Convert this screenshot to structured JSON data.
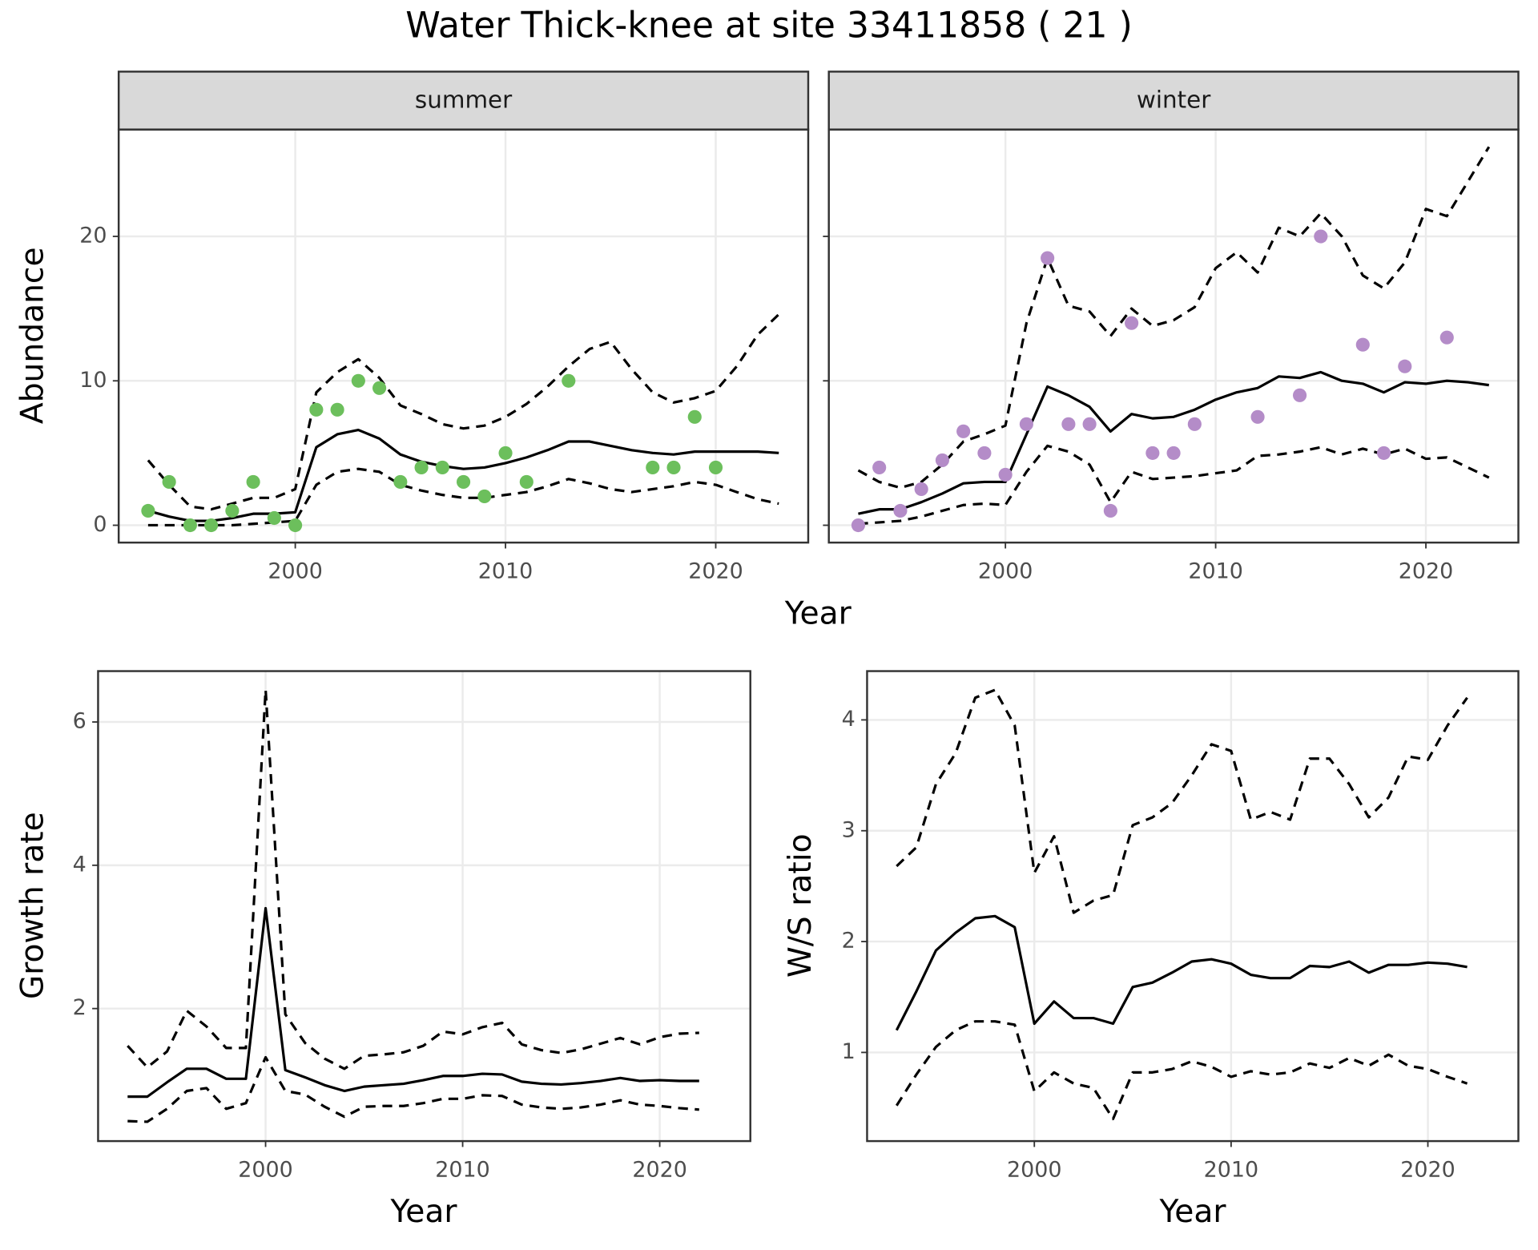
{
  "title": "Water Thick-knee at site 33411858 ( 21 )",
  "chart_data": [
    {
      "type": "line",
      "title": "summer",
      "xlabel": "Year",
      "ylabel": "Abundance",
      "xlim": [
        1991.6,
        2024.4
      ],
      "ylim": [
        -1.2,
        27.4
      ],
      "xticks": [
        2000,
        2010,
        2020
      ],
      "yticks": [
        0,
        10,
        20
      ],
      "grid": true,
      "x": [
        1993,
        1994,
        1995,
        1996,
        1997,
        1998,
        1999,
        2000,
        2001,
        2002,
        2003,
        2004,
        2005,
        2006,
        2007,
        2008,
        2009,
        2010,
        2011,
        2012,
        2013,
        2014,
        2015,
        2016,
        2017,
        2018,
        2019,
        2020,
        2021,
        2022,
        2023
      ],
      "series": [
        {
          "color": "#000000",
          "style": "solid",
          "values": [
            1.0,
            0.6,
            0.3,
            0.3,
            0.5,
            0.8,
            0.8,
            0.9,
            5.4,
            6.3,
            6.6,
            6.0,
            4.9,
            4.4,
            4.1,
            3.9,
            4.0,
            4.3,
            4.7,
            5.2,
            5.8,
            5.8,
            5.5,
            5.2,
            5.0,
            4.9,
            5.1,
            5.1,
            5.1,
            5.1,
            5.0
          ]
        },
        {
          "color": "#000000",
          "style": "dashed",
          "values": [
            4.5,
            2.8,
            1.3,
            1.1,
            1.5,
            1.9,
            1.9,
            2.5,
            9.2,
            10.6,
            11.5,
            10.2,
            8.3,
            7.7,
            7.0,
            6.7,
            6.9,
            7.5,
            8.4,
            9.6,
            11.0,
            12.2,
            12.7,
            10.8,
            9.2,
            8.5,
            8.8,
            9.3,
            11.0,
            13.2,
            14.6
          ]
        },
        {
          "color": "#000000",
          "style": "dashed",
          "values": [
            0,
            0,
            0,
            0,
            0,
            0.1,
            0.2,
            0.3,
            2.8,
            3.7,
            3.9,
            3.7,
            2.8,
            2.4,
            2.1,
            1.9,
            1.9,
            2.1,
            2.3,
            2.7,
            3.2,
            2.9,
            2.5,
            2.3,
            2.5,
            2.7,
            3.0,
            2.8,
            2.3,
            1.8,
            1.5
          ]
        }
      ],
      "points": {
        "color": "#6cbf5c",
        "x": [
          1993,
          1994,
          1995,
          1996,
          1997,
          1998,
          1999,
          2000,
          2001,
          2002,
          2003,
          2004,
          2005,
          2006,
          2007,
          2008,
          2009,
          2010,
          2011,
          2013,
          2017,
          2018,
          2019,
          2020
        ],
        "values": [
          1,
          3,
          0,
          0,
          1,
          3,
          0.5,
          0,
          8,
          8,
          10,
          9.5,
          3,
          4,
          4,
          3,
          2,
          5,
          3,
          10,
          4,
          4,
          7.5,
          4
        ]
      }
    },
    {
      "type": "line",
      "title": "winter",
      "ytick_labels": false,
      "xlim": [
        1991.6,
        2024.4
      ],
      "ylim": [
        -1.2,
        27.4
      ],
      "xticks": [
        2000,
        2010,
        2020
      ],
      "yticks": [
        0,
        10,
        20
      ],
      "grid": true,
      "x": [
        1993,
        1994,
        1995,
        1996,
        1997,
        1998,
        1999,
        2000,
        2001,
        2002,
        2003,
        2004,
        2005,
        2006,
        2007,
        2008,
        2009,
        2010,
        2011,
        2012,
        2013,
        2014,
        2015,
        2016,
        2017,
        2018,
        2019,
        2020,
        2021,
        2022,
        2023
      ],
      "series": [
        {
          "color": "#000000",
          "style": "solid",
          "values": [
            0.8,
            1.1,
            1.1,
            1.6,
            2.2,
            2.9,
            3.0,
            3.0,
            6.3,
            9.6,
            9.0,
            8.2,
            6.5,
            7.7,
            7.4,
            7.5,
            8.0,
            8.7,
            9.2,
            9.5,
            10.3,
            10.2,
            10.6,
            10.0,
            9.8,
            9.2,
            9.9,
            9.8,
            10.0,
            9.9,
            9.7
          ]
        },
        {
          "color": "#000000",
          "style": "dashed",
          "values": [
            3.8,
            3.0,
            2.6,
            3.0,
            4.2,
            5.8,
            6.3,
            6.9,
            14.0,
            18.5,
            15.2,
            14.8,
            13.1,
            15.0,
            13.8,
            14.2,
            15.1,
            17.8,
            18.9,
            17.5,
            20.6,
            20.0,
            21.6,
            20.0,
            17.3,
            16.4,
            18.2,
            21.9,
            21.4,
            23.8,
            26.2
          ]
        },
        {
          "color": "#000000",
          "style": "dashed",
          "values": [
            0.1,
            0.2,
            0.3,
            0.6,
            1.0,
            1.4,
            1.5,
            1.4,
            3.7,
            5.5,
            5.1,
            4.2,
            1.6,
            3.7,
            3.2,
            3.3,
            3.4,
            3.6,
            3.8,
            4.8,
            4.9,
            5.1,
            5.4,
            4.9,
            5.3,
            4.9,
            5.3,
            4.6,
            4.7,
            4.0,
            3.3
          ]
        }
      ],
      "points": {
        "color": "#b48cc8",
        "x": [
          1993,
          1994,
          1995,
          1996,
          1997,
          1998,
          1999,
          2000,
          2001,
          2002,
          2003,
          2004,
          2005,
          2006,
          2007,
          2008,
          2009,
          2012,
          2014,
          2015,
          2017,
          2018,
          2019,
          2021
        ],
        "values": [
          0,
          4,
          1,
          2.5,
          4.5,
          6.5,
          5,
          3.5,
          7,
          18.5,
          7,
          7,
          1,
          14,
          5,
          5,
          7,
          7.5,
          9,
          20,
          12.5,
          5,
          11,
          13
        ]
      }
    },
    {
      "type": "line",
      "xlabel": "Year",
      "ylabel": "Growth rate",
      "xlim": [
        1991.5,
        2024.6
      ],
      "ylim": [
        0.15,
        6.71
      ],
      "xticks": [
        2000,
        2010,
        2020
      ],
      "yticks": [
        2,
        4,
        6
      ],
      "grid": true,
      "x": [
        1993,
        1994,
        1995,
        1996,
        1997,
        1998,
        1999,
        2000,
        2001,
        2002,
        2003,
        2004,
        2005,
        2006,
        2007,
        2008,
        2009,
        2010,
        2011,
        2012,
        2013,
        2014,
        2015,
        2016,
        2017,
        2018,
        2019,
        2020,
        2021,
        2022
      ],
      "series": [
        {
          "color": "#000000",
          "style": "solid",
          "values": [
            0.77,
            0.77,
            0.97,
            1.16,
            1.16,
            1.02,
            1.02,
            3.4,
            1.14,
            1.04,
            0.93,
            0.85,
            0.91,
            0.93,
            0.95,
            1.0,
            1.06,
            1.06,
            1.09,
            1.08,
            0.98,
            0.95,
            0.94,
            0.96,
            0.99,
            1.03,
            0.99,
            1.0,
            0.99,
            0.99
          ]
        },
        {
          "color": "#000000",
          "style": "dashed",
          "values": [
            1.48,
            1.18,
            1.4,
            1.97,
            1.75,
            1.45,
            1.45,
            6.45,
            1.92,
            1.52,
            1.3,
            1.16,
            1.34,
            1.36,
            1.39,
            1.48,
            1.68,
            1.64,
            1.74,
            1.8,
            1.5,
            1.42,
            1.38,
            1.43,
            1.51,
            1.59,
            1.5,
            1.6,
            1.65,
            1.66
          ]
        },
        {
          "color": "#000000",
          "style": "dashed",
          "values": [
            0.43,
            0.42,
            0.6,
            0.85,
            0.89,
            0.6,
            0.68,
            1.32,
            0.85,
            0.8,
            0.63,
            0.49,
            0.63,
            0.64,
            0.64,
            0.68,
            0.74,
            0.74,
            0.79,
            0.78,
            0.66,
            0.62,
            0.6,
            0.62,
            0.66,
            0.72,
            0.66,
            0.64,
            0.61,
            0.59
          ]
        }
      ]
    },
    {
      "type": "line",
      "xlabel": "Year",
      "ylabel": "W/S ratio",
      "xlim": [
        1991.5,
        2024.6
      ],
      "ylim": [
        0.2,
        4.44
      ],
      "xticks": [
        2000,
        2010,
        2020
      ],
      "yticks": [
        1,
        2,
        3,
        4
      ],
      "grid": true,
      "x": [
        1993,
        1994,
        1995,
        1996,
        1997,
        1998,
        1999,
        2000,
        2001,
        2002,
        2003,
        2004,
        2005,
        2006,
        2007,
        2008,
        2009,
        2010,
        2011,
        2012,
        2013,
        2014,
        2015,
        2016,
        2017,
        2018,
        2019,
        2020,
        2021,
        2022
      ],
      "series": [
        {
          "color": "#000000",
          "style": "solid",
          "values": [
            1.2,
            1.55,
            1.92,
            2.08,
            2.21,
            2.23,
            2.13,
            1.26,
            1.46,
            1.31,
            1.31,
            1.26,
            1.59,
            1.63,
            1.72,
            1.82,
            1.84,
            1.8,
            1.7,
            1.67,
            1.67,
            1.78,
            1.77,
            1.82,
            1.72,
            1.79,
            1.79,
            1.81,
            1.8,
            1.77
          ]
        },
        {
          "color": "#000000",
          "style": "dashed",
          "values": [
            2.68,
            2.85,
            3.42,
            3.7,
            4.2,
            4.27,
            3.95,
            2.62,
            2.95,
            2.26,
            2.37,
            2.42,
            3.05,
            3.12,
            3.25,
            3.5,
            3.78,
            3.72,
            3.1,
            3.17,
            3.1,
            3.65,
            3.65,
            3.42,
            3.12,
            3.3,
            3.67,
            3.64,
            3.95,
            4.2
          ]
        },
        {
          "color": "#000000",
          "style": "dashed",
          "values": [
            0.52,
            0.8,
            1.05,
            1.2,
            1.28,
            1.28,
            1.25,
            0.65,
            0.82,
            0.72,
            0.68,
            0.4,
            0.82,
            0.82,
            0.85,
            0.92,
            0.87,
            0.78,
            0.83,
            0.8,
            0.82,
            0.9,
            0.86,
            0.95,
            0.88,
            0.98,
            0.88,
            0.85,
            0.78,
            0.72
          ]
        }
      ]
    }
  ]
}
